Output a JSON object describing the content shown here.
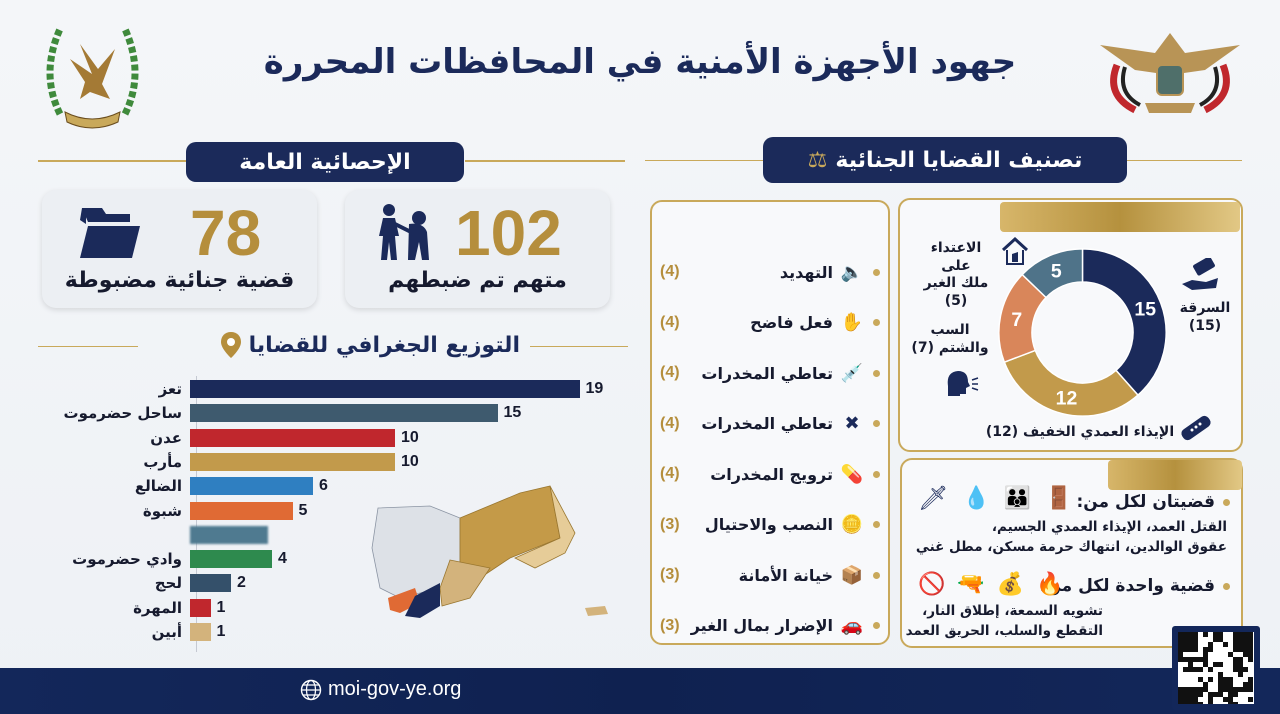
{
  "header": {
    "title": "جهود الأجهزة الأمنية في المحافظات المحررة"
  },
  "general_stats": {
    "section_title": "الإحصائية العامة",
    "cards": [
      {
        "value": "102",
        "label": "متهم تم ضبطهم",
        "icon": "arrest-icon"
      },
      {
        "value": "78",
        "label": "قضية جنائية مضبوطة",
        "icon": "folder-icon"
      }
    ]
  },
  "geo": {
    "section_title": "التوزيع الجغرافي للقضايا",
    "icon": "location-pin-icon"
  },
  "classification": {
    "section_title": "تصنيف القضايا الجنائية",
    "icon": "scales-icon",
    "items": [
      {
        "name": "التهديد",
        "count": "(4)",
        "icon": "megaphone-icon"
      },
      {
        "name": "فعل فاضح",
        "count": "(4)",
        "icon": "hand-icon"
      },
      {
        "name": "تعاطي المخدرات",
        "count": "(4)",
        "icon": "syringe-icon"
      },
      {
        "name": "تعاطي المخدرات",
        "count": "(4)",
        "icon": "bandage-pills-icon"
      },
      {
        "name": "ترويج المخدرات",
        "count": "(4)",
        "icon": "pill-icon"
      },
      {
        "name": "النصب والاحتيال",
        "count": "(3)",
        "icon": "coins-icon"
      },
      {
        "name": "خيانة الأمانة",
        "count": "(3)",
        "icon": "box-icon"
      },
      {
        "name": "الإضرار بمال الغير",
        "count": "(3)",
        "icon": "car-icon"
      }
    ],
    "donut_labels": {
      "theft": "السرقة",
      "theft_count": "(15)",
      "trespass_line1": "الاعتداء على",
      "trespass_line2": "ملك الغير (5)",
      "insult_line1": "السب",
      "insult_line2": "والشتم (7)",
      "assault": "الإيذاء العمدي الخفيف (12)"
    },
    "notes": {
      "two_cases_head": "قضيتان لكل من:",
      "two_cases_line1": "القتل العمد، الإيذاء العمدي الجسيم،",
      "two_cases_line2": "عقوق الوالدين، انتهاك حرمة مسكن، مطل غني",
      "one_case_head": "قضية واحدة لكل من:",
      "one_case_line1": "تشويه السمعة، إطلاق النار،",
      "one_case_line2": "التقطع والسلب، الحريق العمد"
    }
  },
  "footer": {
    "url": "moi-gov-ye.org",
    "icon": "globe-icon"
  },
  "colors": {
    "navy": "#1b2a5a",
    "gold": "#b58e3c",
    "steel": "#3e5a6e",
    "red": "#c0272d",
    "blue": "#2f7fc1",
    "orange": "#e06a34",
    "green": "#2e8a4e",
    "tan": "#d3b37c"
  },
  "chart_data": [
    {
      "type": "bar",
      "title": "التوزيع الجغرافي للقضايا",
      "orientation": "horizontal",
      "categories": [
        "تعز",
        "ساحل حضرموت",
        "عدن",
        "مأرب",
        "الضالع",
        "شبوة",
        "",
        "وادي حضرموت",
        "لحج",
        "المهرة",
        "أبين"
      ],
      "values": [
        19,
        15,
        10,
        10,
        6,
        5,
        null,
        4,
        2,
        1,
        1
      ],
      "value_labels": [
        "19",
        "15",
        "10",
        "10",
        "6",
        "5",
        "",
        "4",
        "2",
        "1",
        "1"
      ],
      "colors": [
        "#1b2a5a",
        "#3e5a6e",
        "#c0272d",
        "#c29a4b",
        "#2f7fc1",
        "#e06a34",
        "#4f7a90",
        "#2e8a4e",
        "#34506a",
        "#c0272d",
        "#d3b37c"
      ],
      "xlabel": "",
      "ylabel": "",
      "grid": false
    },
    {
      "type": "pie",
      "subtype": "donut",
      "categories": [
        "السرقة",
        "الإيذاء العمدي الخفيف",
        "السب والشتم",
        "الاعتداء على ملك الغير"
      ],
      "values": [
        15,
        12,
        7,
        5
      ],
      "colors": [
        "#1b2a5a",
        "#c29a4b",
        "#d9865a",
        "#4f7389"
      ]
    }
  ]
}
